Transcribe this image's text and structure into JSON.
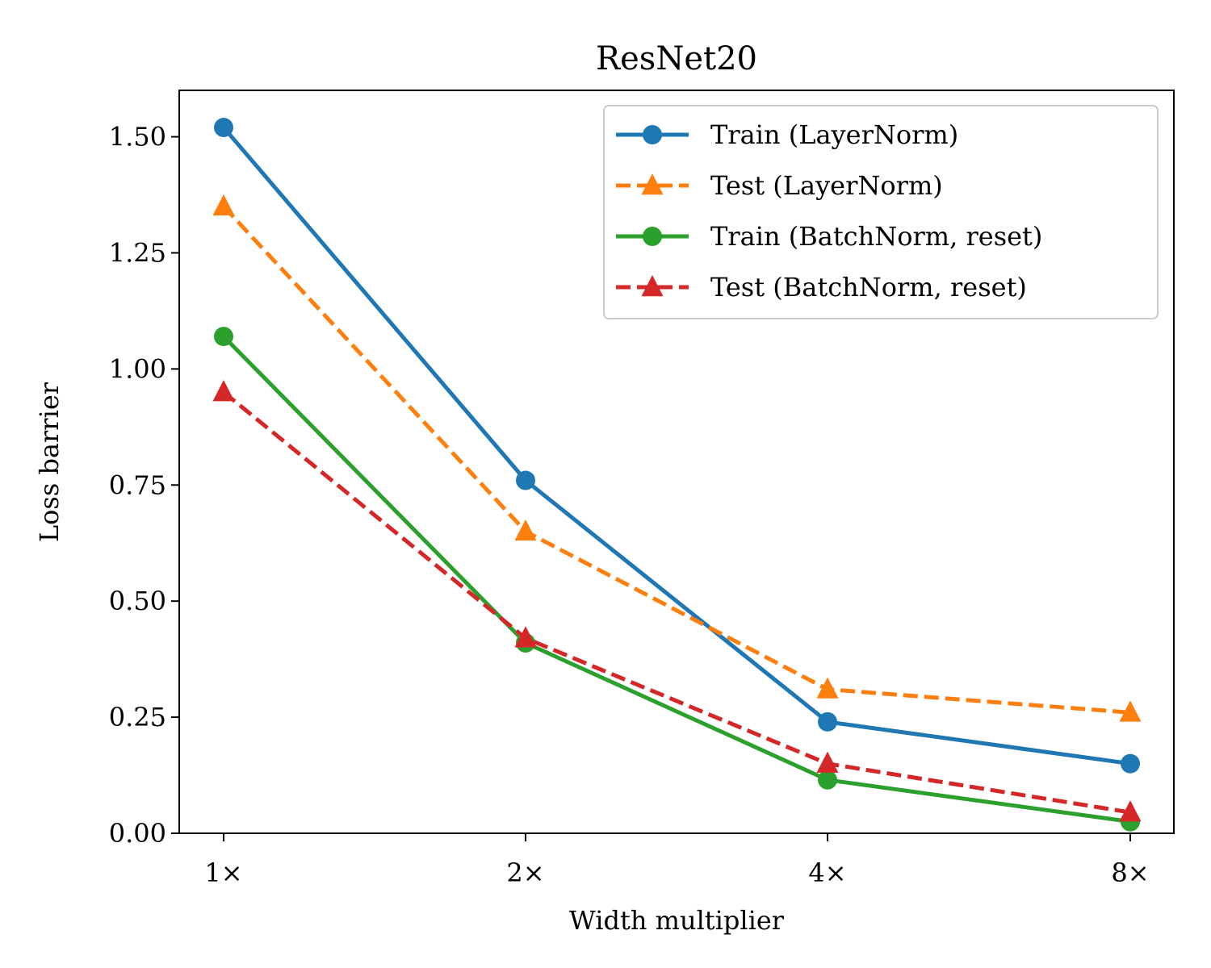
{
  "chart_data": {
    "type": "line",
    "title": "ResNet20",
    "xlabel": "Width multiplier",
    "ylabel": "Loss barrier",
    "categories": [
      "1×",
      "2×",
      "4×",
      "8×"
    ],
    "ylim": [
      0,
      1.6
    ],
    "yticks": [
      0,
      0.25,
      0.5,
      0.75,
      1.0,
      1.25,
      1.5
    ],
    "ytick_labels": [
      "0.00",
      "0.25",
      "0.50",
      "0.75",
      "1.00",
      "1.25",
      "1.50"
    ],
    "grid": false,
    "legend_position": "top-right",
    "series": [
      {
        "name": "Train (LayerNorm)",
        "values": [
          1.52,
          0.76,
          0.24,
          0.15
        ],
        "color": "#1f77b4",
        "linestyle": "solid",
        "marker": "circle"
      },
      {
        "name": "Test (LayerNorm)",
        "values": [
          1.35,
          0.65,
          0.31,
          0.26
        ],
        "color": "#ff7f0e",
        "linestyle": "dashed",
        "marker": "triangle"
      },
      {
        "name": "Train (BatchNorm, reset)",
        "values": [
          1.07,
          0.41,
          0.115,
          0.025
        ],
        "color": "#2ca02c",
        "linestyle": "solid",
        "marker": "circle"
      },
      {
        "name": "Test (BatchNorm, reset)",
        "values": [
          0.95,
          0.42,
          0.15,
          0.045
        ],
        "color": "#d62728",
        "linestyle": "dashed",
        "marker": "triangle"
      }
    ]
  }
}
